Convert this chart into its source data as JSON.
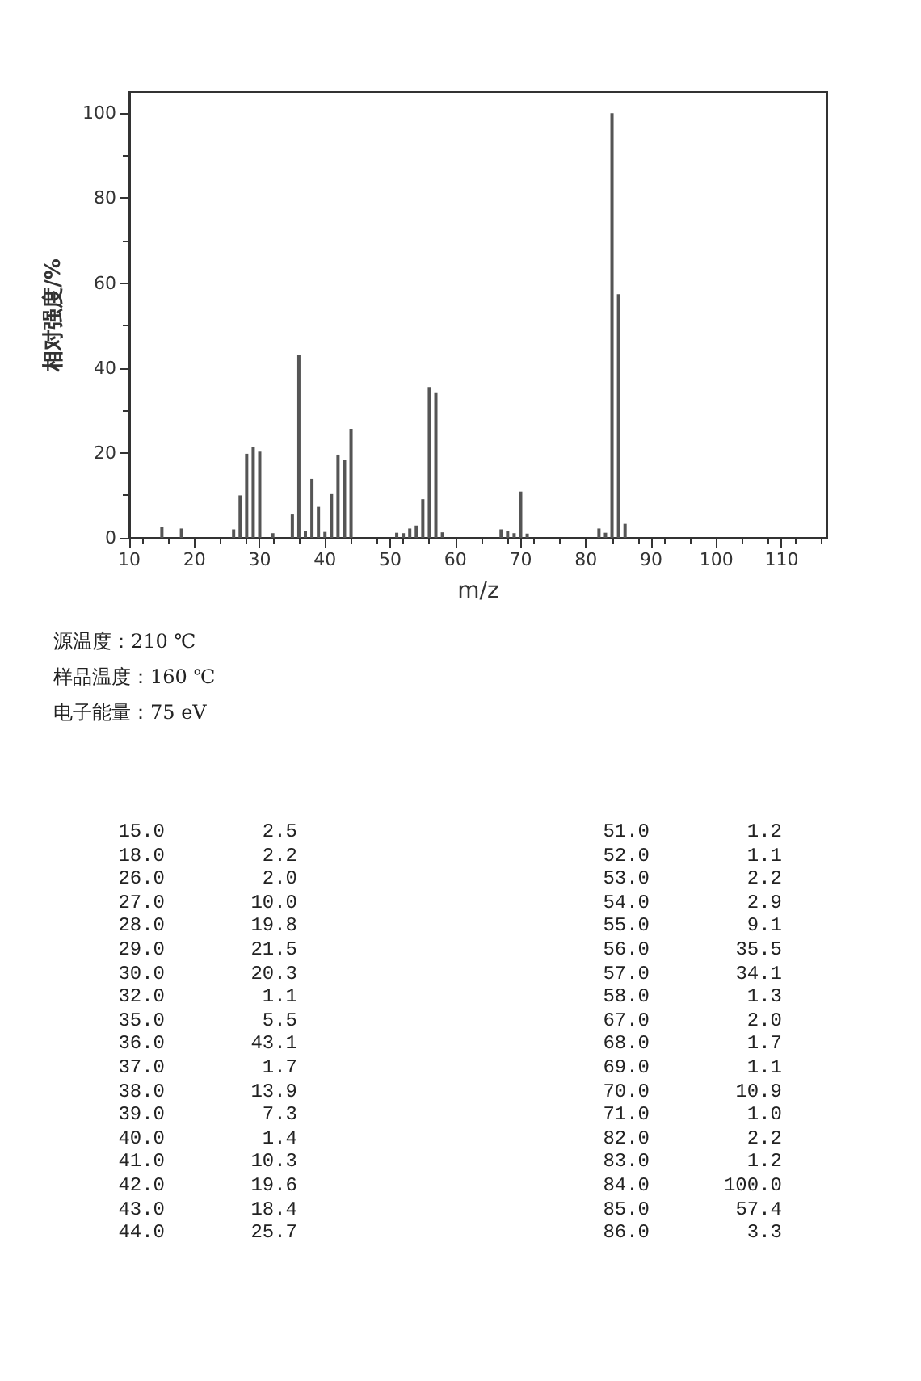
{
  "chart_data": [
    {
      "type": "bar",
      "xlabel": "m/z",
      "ylabel": "相对强度/%",
      "x": [
        15,
        18,
        26,
        27,
        28,
        29,
        30,
        32,
        35,
        36,
        37,
        38,
        39,
        40,
        41,
        42,
        43,
        44,
        51,
        52,
        53,
        54,
        55,
        56,
        57,
        58,
        67,
        68,
        69,
        70,
        71,
        82,
        83,
        84,
        85,
        86
      ],
      "values": [
        2.5,
        2.2,
        2.0,
        10.0,
        19.8,
        21.5,
        20.3,
        1.1,
        5.5,
        43.1,
        1.7,
        13.9,
        7.3,
        1.4,
        10.3,
        19.6,
        18.4,
        25.7,
        1.2,
        1.1,
        2.2,
        2.9,
        9.1,
        35.5,
        34.1,
        1.3,
        2.0,
        1.7,
        1.1,
        10.9,
        1.0,
        2.2,
        1.2,
        100.0,
        57.4,
        3.3
      ],
      "color": "#555555",
      "xlim": [
        10,
        117
      ],
      "xticks": [
        10,
        20,
        30,
        40,
        50,
        60,
        70,
        80,
        90,
        100,
        110
      ],
      "ylim": [
        0,
        105
      ],
      "yticks": [
        0,
        20,
        40,
        60,
        80,
        100
      ],
      "grid": false,
      "annotations": [
        "源温度：210 ℃",
        "样品温度：160 ℃",
        "电子能量：75 eV"
      ]
    },
    {
      "type": "other",
      "categories": [
        "15.0",
        "18.0",
        "26.0",
        "27.0",
        "28.0",
        "29.0",
        "30.0",
        "32.0",
        "35.0",
        "36.0",
        "37.0",
        "38.0",
        "39.0",
        "40.0",
        "41.0",
        "42.0",
        "43.0",
        "44.0",
        "51.0",
        "52.0",
        "53.0",
        "54.0",
        "55.0",
        "56.0",
        "57.0",
        "58.0",
        "67.0",
        "68.0",
        "69.0",
        "70.0",
        "71.0",
        "82.0",
        "83.0",
        "84.0",
        "85.0",
        "86.0"
      ],
      "values": [
        2.5,
        2.2,
        2.0,
        10.0,
        19.8,
        21.5,
        20.3,
        1.1,
        5.5,
        43.1,
        1.7,
        13.9,
        7.3,
        1.4,
        10.3,
        19.6,
        18.4,
        25.7,
        1.2,
        1.1,
        2.2,
        2.9,
        9.1,
        35.5,
        34.1,
        1.3,
        2.0,
        1.7,
        1.1,
        10.9,
        1.0,
        2.2,
        1.2,
        100.0,
        57.4,
        3.3
      ],
      "value_labels": [
        "2.5",
        "2.2",
        "2.0",
        "10.0",
        "19.8",
        "21.5",
        "20.3",
        "1.1",
        "5.5",
        "43.1",
        "1.7",
        "13.9",
        "7.3",
        "1.4",
        "10.3",
        "19.6",
        "18.4",
        "25.7",
        "1.2",
        "1.1",
        "2.2",
        "2.9",
        "9.1",
        "35.5",
        "34.1",
        "1.3",
        "2.0",
        "1.7",
        "1.1",
        "10.9",
        "1.0",
        "2.2",
        "1.2",
        "100.0",
        "57.4",
        "3.3"
      ]
    }
  ]
}
